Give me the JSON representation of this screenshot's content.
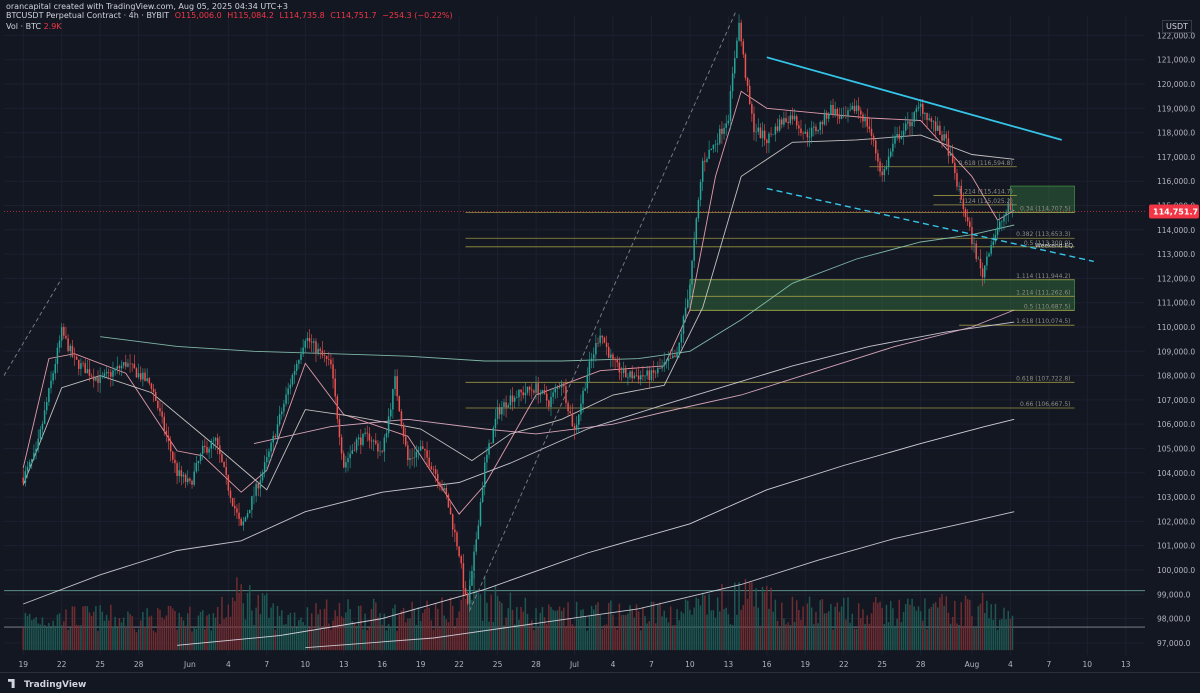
{
  "header": {
    "author_line": "orancapital created with TradingView.com, Aug 05, 2025 04:34 UTC+3",
    "symbol": "BTCUSDT Perpetual Contract · 4h · BYBIT",
    "open": "O115,006.0",
    "high": "H115,084.2",
    "low": "L114,735.8",
    "close": "C114,751.7",
    "change": "−254.3 (−0.22%)",
    "volume_label": "Vol · BTC",
    "volume_value": "2.9K",
    "currency": "USDT"
  },
  "footer": {
    "brand": "TradingView"
  },
  "colors": {
    "background": "#131722",
    "up": "#26a69a",
    "down": "#ef5350",
    "trend": "#35c5e8",
    "fib": "#b5a94a",
    "zone": "#4caf50",
    "last_price": "#f23645"
  },
  "chart_data": {
    "type": "candlestick",
    "yaxis": {
      "ticks": [
        "122,000.0",
        "121,000.0",
        "120,000.0",
        "119,000.0",
        "118,000.0",
        "117,000.0",
        "116,000.0",
        "115,000.0",
        "114,000.0",
        "113,000.0",
        "112,000.0",
        "111,000.0",
        "110,000.0",
        "109,000.0",
        "108,000.0",
        "107,000.0",
        "106,000.0",
        "105,000.0",
        "104,000.0",
        "103,000.0",
        "102,000.0",
        "101,000.0",
        "100,000.0",
        "99,000.0",
        "98,000.0",
        "97,000.0"
      ],
      "ylim": [
        96500,
        122800
      ]
    },
    "xaxis": {
      "ticks": [
        {
          "label": "19",
          "day": 0
        },
        {
          "label": "22",
          "day": 3
        },
        {
          "label": "25",
          "day": 6
        },
        {
          "label": "28",
          "day": 9
        },
        {
          "label": "Jun",
          "day": 13
        },
        {
          "label": "4",
          "day": 16
        },
        {
          "label": "7",
          "day": 19
        },
        {
          "label": "10",
          "day": 22
        },
        {
          "label": "13",
          "day": 25
        },
        {
          "label": "16",
          "day": 28
        },
        {
          "label": "19",
          "day": 31
        },
        {
          "label": "22",
          "day": 34
        },
        {
          "label": "25",
          "day": 37
        },
        {
          "label": "28",
          "day": 40
        },
        {
          "label": "Jul",
          "day": 43
        },
        {
          "label": "4",
          "day": 46
        },
        {
          "label": "7",
          "day": 49
        },
        {
          "label": "10",
          "day": 52
        },
        {
          "label": "13",
          "day": 55
        },
        {
          "label": "16",
          "day": 58
        },
        {
          "label": "19",
          "day": 61
        },
        {
          "label": "22",
          "day": 64
        },
        {
          "label": "25",
          "day": 67
        },
        {
          "label": "28",
          "day": 70
        },
        {
          "label": "Aug",
          "day": 74
        },
        {
          "label": "4",
          "day": 77
        },
        {
          "label": "7",
          "day": 80
        },
        {
          "label": "10",
          "day": 83
        },
        {
          "label": "13",
          "day": 86
        }
      ],
      "xlim": [
        -1.5,
        87.5
      ]
    },
    "price_path": [
      [
        0,
        103800
      ],
      [
        1,
        104800
      ],
      [
        2,
        107300
      ],
      [
        3,
        109800
      ],
      [
        4,
        108600
      ],
      [
        6,
        107800
      ],
      [
        8,
        108500
      ],
      [
        10,
        107600
      ],
      [
        12,
        104000
      ],
      [
        13,
        103500
      ],
      [
        14,
        104900
      ],
      [
        15,
        105300
      ],
      [
        16,
        103400
      ],
      [
        17,
        101700
      ],
      [
        19,
        104500
      ],
      [
        21,
        108000
      ],
      [
        22,
        109600
      ],
      [
        24,
        108400
      ],
      [
        25,
        104300
      ],
      [
        26,
        105300
      ],
      [
        27,
        105500
      ],
      [
        28,
        104800
      ],
      [
        29,
        107800
      ],
      [
        30,
        104500
      ],
      [
        31,
        105000
      ],
      [
        32,
        104200
      ],
      [
        33,
        103000
      ],
      [
        34,
        100700
      ],
      [
        34.6,
        98400
      ],
      [
        35,
        99800
      ],
      [
        36,
        104300
      ],
      [
        37,
        106500
      ],
      [
        38,
        107100
      ],
      [
        39,
        107300
      ],
      [
        40,
        107500
      ],
      [
        41,
        106900
      ],
      [
        42,
        107800
      ],
      [
        43,
        105700
      ],
      [
        44,
        108100
      ],
      [
        45,
        109800
      ],
      [
        46,
        108500
      ],
      [
        47,
        108000
      ],
      [
        48,
        108000
      ],
      [
        49,
        108000
      ],
      [
        50,
        108400
      ],
      [
        51,
        108800
      ],
      [
        52,
        111800
      ],
      [
        53,
        116800
      ],
      [
        54,
        117600
      ],
      [
        55,
        118700
      ],
      [
        55.8,
        122600
      ],
      [
        56.6,
        119300
      ],
      [
        57,
        118200
      ],
      [
        58,
        117700
      ],
      [
        59,
        118400
      ],
      [
        60,
        118700
      ],
      [
        61,
        117900
      ],
      [
        62,
        118200
      ],
      [
        63,
        119000
      ],
      [
        64,
        118500
      ],
      [
        65,
        119100
      ],
      [
        66,
        118200
      ],
      [
        67,
        116200
      ],
      [
        68,
        117700
      ],
      [
        69,
        118300
      ],
      [
        70,
        119100
      ],
      [
        71,
        118300
      ],
      [
        72,
        117600
      ],
      [
        73,
        115600
      ],
      [
        74,
        113600
      ],
      [
        74.8,
        112100
      ],
      [
        75.3,
        113200
      ],
      [
        76,
        114000
      ],
      [
        76.8,
        114900
      ],
      [
        77.3,
        114752
      ]
    ],
    "volume_path": [
      [
        0,
        98200
      ],
      [
        5,
        98300
      ],
      [
        10,
        98200
      ],
      [
        15,
        98300
      ],
      [
        17,
        99400
      ],
      [
        20,
        98300
      ],
      [
        25,
        98500
      ],
      [
        30,
        98400
      ],
      [
        34,
        98600
      ],
      [
        34.6,
        99800
      ],
      [
        40,
        98300
      ],
      [
        45,
        98400
      ],
      [
        50,
        98500
      ],
      [
        53,
        98700
      ],
      [
        56,
        99200
      ],
      [
        60,
        98600
      ],
      [
        65,
        98500
      ],
      [
        70,
        98600
      ],
      [
        75,
        98700
      ],
      [
        77.3,
        98000
      ]
    ],
    "moving_averages": [
      {
        "color": "#f7a9b9",
        "points": [
          [
            0,
            104200
          ],
          [
            2,
            108700
          ],
          [
            4,
            108900
          ],
          [
            8,
            108100
          ],
          [
            12,
            104900
          ],
          [
            14,
            104700
          ],
          [
            17,
            103200
          ],
          [
            19,
            104100
          ],
          [
            22,
            108500
          ],
          [
            25,
            106400
          ],
          [
            30,
            105500
          ],
          [
            34,
            102300
          ],
          [
            36,
            103500
          ],
          [
            40,
            107200
          ],
          [
            45,
            108200
          ],
          [
            50,
            108400
          ],
          [
            52,
            110700
          ],
          [
            54,
            116200
          ],
          [
            56,
            119700
          ],
          [
            58,
            119000
          ],
          [
            62,
            118800
          ],
          [
            66,
            118600
          ],
          [
            70,
            118500
          ],
          [
            74,
            116200
          ],
          [
            76,
            114400
          ],
          [
            77.3,
            114800
          ]
        ]
      },
      {
        "color": "#d7d3d0",
        "points": [
          [
            0,
            103500
          ],
          [
            3,
            107500
          ],
          [
            6,
            108000
          ],
          [
            10,
            107300
          ],
          [
            15,
            105100
          ],
          [
            19,
            103300
          ],
          [
            22,
            106600
          ],
          [
            26,
            106300
          ],
          [
            31,
            105800
          ],
          [
            35,
            104500
          ],
          [
            38,
            105600
          ],
          [
            42,
            106200
          ],
          [
            46,
            107200
          ],
          [
            50,
            107600
          ],
          [
            53,
            110800
          ],
          [
            56,
            116200
          ],
          [
            60,
            117600
          ],
          [
            65,
            117700
          ],
          [
            70,
            117900
          ],
          [
            74,
            117100
          ],
          [
            77.3,
            116900
          ]
        ]
      },
      {
        "color": "#8bc8b4",
        "points": [
          [
            6,
            109600
          ],
          [
            12,
            109200
          ],
          [
            18,
            109000
          ],
          [
            24,
            108900
          ],
          [
            30,
            108800
          ],
          [
            36,
            108600
          ],
          [
            42,
            108600
          ],
          [
            48,
            108700
          ],
          [
            52,
            109000
          ],
          [
            56,
            110300
          ],
          [
            60,
            111800
          ],
          [
            65,
            112800
          ],
          [
            70,
            113500
          ],
          [
            74,
            113800
          ],
          [
            77.3,
            114200
          ]
        ]
      },
      {
        "color": "#d9d6e0",
        "points": [
          [
            0,
            98600
          ],
          [
            6,
            99800
          ],
          [
            12,
            100800
          ],
          [
            17,
            101200
          ],
          [
            22,
            102400
          ],
          [
            28,
            103200
          ],
          [
            34,
            103600
          ],
          [
            38,
            104400
          ],
          [
            44,
            105800
          ],
          [
            50,
            106800
          ],
          [
            55,
            107600
          ],
          [
            60,
            108400
          ],
          [
            66,
            109200
          ],
          [
            72,
            109800
          ],
          [
            77.3,
            110200
          ]
        ]
      },
      {
        "color": "#e8b4c8",
        "points": [
          [
            18,
            105200
          ],
          [
            24,
            105900
          ],
          [
            30,
            106200
          ],
          [
            36,
            105800
          ],
          [
            40,
            105600
          ],
          [
            46,
            106000
          ],
          [
            50,
            106500
          ],
          [
            56,
            107200
          ],
          [
            62,
            108200
          ],
          [
            68,
            109200
          ],
          [
            74,
            110000
          ],
          [
            77.3,
            110700
          ]
        ]
      },
      {
        "color": "#e5e2ec",
        "points": [
          [
            12,
            96900
          ],
          [
            20,
            97300
          ],
          [
            28,
            98000
          ],
          [
            36,
            99200
          ],
          [
            44,
            100700
          ],
          [
            52,
            101900
          ],
          [
            58,
            103300
          ],
          [
            64,
            104300
          ],
          [
            70,
            105200
          ],
          [
            75,
            105900
          ],
          [
            77.3,
            106200
          ]
        ]
      },
      {
        "color": "#dcd9e3",
        "points": [
          [
            22,
            96800
          ],
          [
            32,
            97200
          ],
          [
            40,
            97800
          ],
          [
            48,
            98400
          ],
          [
            56,
            99400
          ],
          [
            62,
            100400
          ],
          [
            68,
            101300
          ],
          [
            74,
            102000
          ],
          [
            77.3,
            102400
          ]
        ]
      }
    ],
    "fib_levels": [
      {
        "label": "0.618 (116,594.8)",
        "price": 116594.8,
        "from_day": 66,
        "to_day": 77.5
      },
      {
        "label": "1.214 (115,414.7)",
        "price": 115414.7,
        "from_day": 71,
        "to_day": 77.5
      },
      {
        "label": "1.124 (115,025.2)",
        "price": 115025.2,
        "from_day": 71,
        "to_day": 77.5
      },
      {
        "label": "0.34 (114,707.5)",
        "price": 114707.5,
        "from_day": 34.5,
        "to_day": 82
      },
      {
        "label": "0.382 (113,653.3)",
        "price": 113653.3,
        "from_day": 34.5,
        "to_day": 82
      },
      {
        "label": "0.5 (113,300.0)",
        "price": 113300.0,
        "from_day": 34.5,
        "to_day": 82
      },
      {
        "label": "1.114 (111,944.2)",
        "price": 111944.2,
        "from_day": 52,
        "to_day": 82
      },
      {
        "label": "1.214 (111,262.6)",
        "price": 111262.6,
        "from_day": 52,
        "to_day": 82
      },
      {
        "label": "0.5 (110,687.5)",
        "price": 110687.5,
        "from_day": 52,
        "to_day": 82
      },
      {
        "label": "1.618 (110,074.5)",
        "price": 110074.5,
        "from_day": 73,
        "to_day": 82
      },
      {
        "label": "0.618 (107,722.8)",
        "price": 107722.8,
        "from_day": 34.5,
        "to_day": 82
      },
      {
        "label": "0.66 (106,667.5)",
        "price": 106667.5,
        "from_day": 34.5,
        "to_day": 82
      }
    ],
    "annotations": [
      {
        "label": "Weekend EQ",
        "price": 113350,
        "day": 78.3
      }
    ],
    "zones": [
      {
        "from_day": 52,
        "to_day": 82,
        "low": 110687.5,
        "high": 111944.2
      },
      {
        "from_day": 77,
        "to_day": 82,
        "low": 114707.5,
        "high": 115800
      }
    ],
    "trendlines": [
      {
        "style": "solid",
        "from": [
          58,
          121100
        ],
        "to": [
          81,
          117700
        ]
      },
      {
        "style": "dashed",
        "from": [
          58,
          115700
        ],
        "to": [
          83.5,
          112700
        ]
      },
      {
        "style": "dashed-gray",
        "from": [
          -1.5,
          108000
        ],
        "to": [
          3,
          112000
        ]
      },
      {
        "style": "dashed-gray",
        "from": [
          34.8,
          98300
        ],
        "to": [
          55.6,
          123000
        ]
      }
    ],
    "horizontal_lines": [
      {
        "price": 99150,
        "color": "#5c8f86"
      },
      {
        "price": 97650,
        "color": "#8a8d95"
      }
    ],
    "last_price": {
      "value": 114751.7,
      "label": "114,751.7"
    }
  }
}
